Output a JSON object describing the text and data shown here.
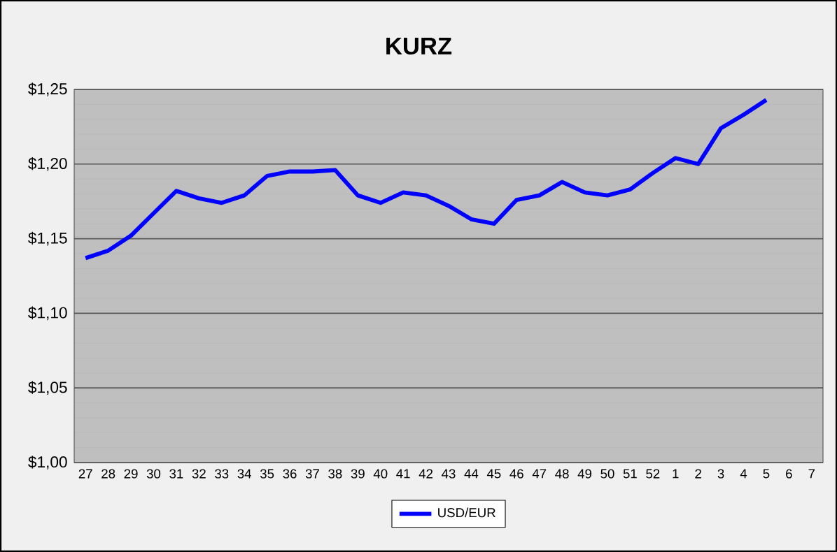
{
  "chart_data": {
    "type": "line",
    "title": "KURZ",
    "categories": [
      "27",
      "28",
      "29",
      "30",
      "31",
      "32",
      "33",
      "34",
      "35",
      "36",
      "37",
      "38",
      "39",
      "40",
      "41",
      "42",
      "43",
      "44",
      "45",
      "46",
      "47",
      "48",
      "49",
      "50",
      "51",
      "52",
      "1",
      "2",
      "3",
      "4",
      "5",
      "6",
      "7"
    ],
    "series": [
      {
        "name": "USD/EUR",
        "color": "#0000ff",
        "values": [
          1.137,
          1.142,
          1.152,
          1.167,
          1.182,
          1.177,
          1.174,
          1.179,
          1.192,
          1.195,
          1.195,
          1.196,
          1.179,
          1.174,
          1.181,
          1.179,
          1.172,
          1.163,
          1.16,
          1.176,
          1.179,
          1.188,
          1.181,
          1.179,
          1.183,
          1.194,
          1.204,
          1.2,
          1.224,
          1.233,
          1.243,
          null,
          null
        ]
      }
    ],
    "ylim": [
      1.0,
      1.25
    ],
    "yticks": [
      {
        "value": 1.0,
        "label": "$1,00"
      },
      {
        "value": 1.05,
        "label": "$1,05"
      },
      {
        "value": 1.1,
        "label": "$1,10"
      },
      {
        "value": 1.15,
        "label": "$1,15"
      },
      {
        "value": 1.2,
        "label": "$1,20"
      },
      {
        "value": 1.25,
        "label": "$1,25"
      }
    ],
    "grid": "y",
    "legend": "bottom",
    "marker": "none",
    "line_style": "solid"
  }
}
